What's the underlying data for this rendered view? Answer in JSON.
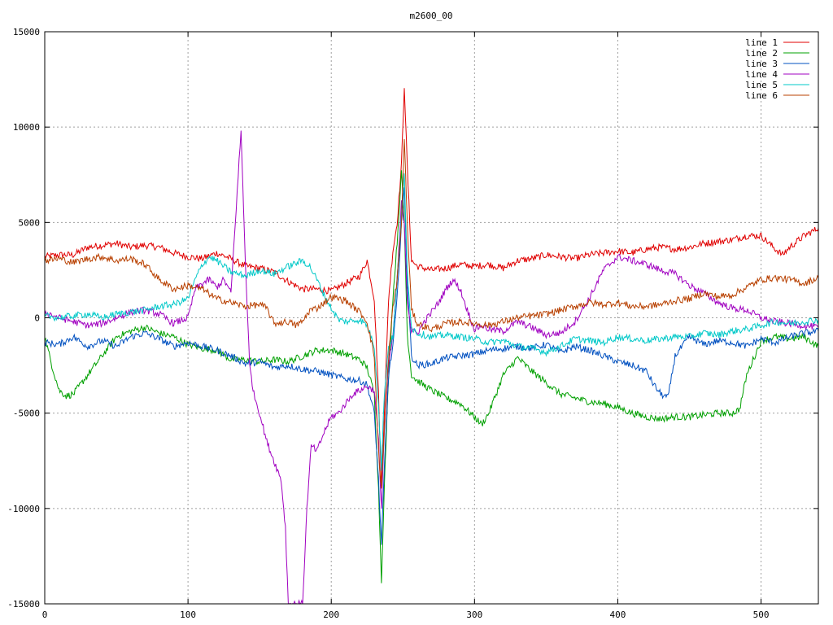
{
  "chart_data": {
    "type": "line",
    "title": "m2600_00",
    "xlabel": "",
    "ylabel": "",
    "xlim": [
      0,
      540
    ],
    "ylim": [
      -15000,
      15000
    ],
    "x_ticks": [
      0,
      100,
      200,
      300,
      400,
      500
    ],
    "y_ticks": [
      -15000,
      -10000,
      -5000,
      0,
      5000,
      10000,
      15000
    ],
    "grid": true,
    "legend_position": "top-right",
    "series": [
      {
        "name": "line 1",
        "color": "#e00000",
        "x": [
          0,
          10,
          20,
          30,
          40,
          50,
          60,
          70,
          80,
          90,
          100,
          110,
          120,
          130,
          140,
          150,
          160,
          170,
          180,
          190,
          200,
          210,
          220,
          225,
          230,
          233,
          235,
          237,
          240,
          243,
          246,
          249,
          251,
          253,
          256,
          260,
          270,
          280,
          290,
          300,
          310,
          320,
          330,
          340,
          350,
          360,
          370,
          380,
          390,
          400,
          410,
          420,
          430,
          440,
          450,
          460,
          470,
          480,
          490,
          500,
          510,
          515,
          520,
          530,
          540
        ],
        "y": [
          3200,
          3300,
          3300,
          3700,
          3800,
          3900,
          3700,
          3800,
          3700,
          3400,
          3200,
          3100,
          3400,
          3100,
          2700,
          2600,
          2400,
          1900,
          1500,
          1500,
          1400,
          1800,
          2200,
          3000,
          1000,
          -4000,
          -9000,
          -5000,
          1000,
          3500,
          5000,
          8000,
          12200,
          8000,
          3000,
          2700,
          2500,
          2600,
          2800,
          2700,
          2800,
          2600,
          3000,
          3100,
          3300,
          3200,
          3100,
          3300,
          3400,
          3500,
          3400,
          3600,
          3700,
          3600,
          3700,
          3900,
          4000,
          4100,
          4300,
          4300,
          3600,
          3300,
          3700,
          4300,
          4700
        ]
      },
      {
        "name": "line 2",
        "color": "#00a000",
        "x": [
          0,
          5,
          10,
          15,
          20,
          25,
          30,
          40,
          50,
          60,
          70,
          80,
          90,
          100,
          110,
          120,
          130,
          140,
          150,
          160,
          170,
          180,
          190,
          200,
          210,
          220,
          225,
          230,
          233,
          235,
          237,
          240,
          243,
          246,
          249,
          251,
          253,
          256,
          260,
          270,
          280,
          290,
          300,
          305,
          310,
          320,
          330,
          340,
          350,
          360,
          370,
          380,
          390,
          400,
          410,
          420,
          430,
          440,
          450,
          460,
          470,
          480,
          485,
          490,
          500,
          510,
          520,
          530,
          540
        ],
        "y": [
          -1000,
          -2500,
          -3800,
          -4100,
          -4000,
          -3500,
          -3000,
          -2000,
          -1000,
          -700,
          -500,
          -800,
          -1000,
          -1400,
          -1600,
          -1700,
          -2200,
          -2200,
          -2300,
          -2200,
          -2300,
          -2000,
          -1700,
          -1700,
          -1900,
          -2200,
          -2600,
          -4000,
          -9000,
          -13800,
          -9000,
          -3000,
          1000,
          4000,
          7600,
          5000,
          -800,
          -3000,
          -3300,
          -3800,
          -4200,
          -4500,
          -5200,
          -5600,
          -5000,
          -3000,
          -2100,
          -2800,
          -3400,
          -4000,
          -4200,
          -4400,
          -4500,
          -4700,
          -5000,
          -5200,
          -5300,
          -5200,
          -5200,
          -5100,
          -5000,
          -5000,
          -4800,
          -3000,
          -1200,
          -1000,
          -1100,
          -1000,
          -1500
        ]
      },
      {
        "name": "line 3",
        "color": "#0050c0",
        "x": [
          0,
          10,
          20,
          30,
          40,
          50,
          60,
          70,
          80,
          90,
          100,
          110,
          120,
          130,
          140,
          150,
          160,
          170,
          180,
          190,
          200,
          210,
          220,
          225,
          230,
          233,
          235,
          237,
          240,
          243,
          246,
          249,
          251,
          253,
          256,
          260,
          270,
          280,
          290,
          300,
          310,
          320,
          330,
          340,
          350,
          360,
          370,
          380,
          390,
          400,
          410,
          420,
          425,
          430,
          435,
          440,
          450,
          460,
          470,
          480,
          490,
          500,
          510,
          520,
          530,
          540
        ],
        "y": [
          -1300,
          -1400,
          -1000,
          -1500,
          -1200,
          -1500,
          -1000,
          -800,
          -1100,
          -1500,
          -1300,
          -1500,
          -1700,
          -2000,
          -2400,
          -2300,
          -2600,
          -2500,
          -2700,
          -2800,
          -3000,
          -3200,
          -3300,
          -3500,
          -5000,
          -8500,
          -12000,
          -8000,
          -3000,
          -1500,
          1000,
          5000,
          6800,
          2000,
          -2000,
          -2500,
          -2400,
          -2100,
          -2000,
          -1900,
          -1700,
          -1600,
          -1500,
          -1600,
          -1400,
          -1800,
          -1500,
          -1700,
          -2000,
          -2300,
          -2500,
          -2800,
          -3500,
          -4000,
          -4200,
          -2000,
          -1000,
          -1400,
          -1200,
          -1300,
          -1500,
          -1100,
          -1300,
          -1000,
          -800,
          -700
        ]
      },
      {
        "name": "line 4",
        "color": "#a000c0",
        "x": [
          0,
          10,
          20,
          30,
          40,
          50,
          60,
          70,
          80,
          90,
          100,
          105,
          110,
          115,
          120,
          125,
          130,
          133,
          137,
          140,
          143,
          146,
          150,
          155,
          160,
          165,
          168,
          170,
          175,
          180,
          183,
          186,
          190,
          195,
          200,
          205,
          210,
          215,
          220,
          225,
          230,
          233,
          235,
          237,
          240,
          243,
          246,
          249,
          251,
          253,
          256,
          260,
          265,
          270,
          275,
          280,
          285,
          290,
          295,
          300,
          305,
          310,
          320,
          330,
          340,
          350,
          360,
          370,
          380,
          390,
          400,
          410,
          420,
          430,
          440,
          450,
          460,
          470,
          480,
          490,
          500,
          510,
          520,
          530,
          540
        ],
        "y": [
          300,
          0,
          -200,
          -400,
          -300,
          0,
          300,
          400,
          200,
          -300,
          0,
          1500,
          1800,
          2000,
          1600,
          2000,
          1300,
          5000,
          9800,
          3000,
          -2500,
          -4000,
          -5000,
          -6500,
          -7500,
          -8500,
          -11000,
          -15000,
          -15000,
          -15000,
          -10000,
          -6700,
          -7000,
          -6000,
          -5200,
          -5000,
          -4500,
          -4000,
          -3800,
          -3600,
          -3800,
          -6500,
          -10000,
          -6000,
          -2500,
          -1000,
          2000,
          6000,
          5000,
          1000,
          -700,
          -800,
          -200,
          300,
          800,
          1500,
          2000,
          1500,
          400,
          -600,
          -400,
          -600,
          -700,
          -200,
          -500,
          -900,
          -800,
          -200,
          1000,
          2500,
          3200,
          3000,
          2800,
          2500,
          2300,
          1700,
          1300,
          800,
          500,
          400,
          0,
          -200,
          -300,
          -400,
          -500
        ]
      },
      {
        "name": "line 5",
        "color": "#00c8c8",
        "x": [
          0,
          10,
          20,
          30,
          40,
          50,
          60,
          70,
          80,
          90,
          100,
          105,
          110,
          115,
          120,
          125,
          130,
          140,
          150,
          160,
          170,
          180,
          185,
          190,
          195,
          200,
          205,
          210,
          220,
          225,
          230,
          233,
          235,
          237,
          240,
          243,
          246,
          249,
          251,
          253,
          256,
          260,
          270,
          280,
          290,
          300,
          310,
          320,
          330,
          340,
          350,
          360,
          370,
          380,
          390,
          400,
          410,
          420,
          430,
          440,
          450,
          460,
          470,
          480,
          490,
          500,
          510,
          520,
          530,
          540
        ],
        "y": [
          100,
          0,
          100,
          200,
          0,
          200,
          300,
          400,
          600,
          700,
          1000,
          2000,
          2800,
          3200,
          3000,
          2700,
          2400,
          2200,
          2500,
          2300,
          2700,
          3000,
          2700,
          2000,
          1200,
          500,
          -100,
          -200,
          -100,
          -400,
          -1500,
          -4500,
          -8000,
          -4000,
          -1500,
          -1000,
          2000,
          5500,
          7500,
          2500,
          -500,
          -800,
          -1000,
          -900,
          -1000,
          -1100,
          -1300,
          -1200,
          -1500,
          -1600,
          -1800,
          -1500,
          -1100,
          -1200,
          -1300,
          -1000,
          -1100,
          -1200,
          -1100,
          -1000,
          -1000,
          -800,
          -900,
          -700,
          -600,
          -400,
          -200,
          -300,
          -200,
          -100
        ]
      },
      {
        "name": "line 6",
        "color": "#b84000",
        "x": [
          0,
          10,
          20,
          30,
          40,
          50,
          60,
          70,
          80,
          90,
          100,
          110,
          120,
          130,
          140,
          150,
          155,
          160,
          170,
          175,
          180,
          185,
          190,
          195,
          200,
          210,
          215,
          220,
          225,
          230,
          233,
          235,
          237,
          240,
          243,
          246,
          249,
          251,
          253,
          256,
          260,
          270,
          280,
          290,
          300,
          310,
          320,
          330,
          340,
          350,
          360,
          370,
          380,
          390,
          400,
          410,
          420,
          430,
          440,
          450,
          460,
          470,
          480,
          490,
          500,
          510,
          520,
          530,
          540
        ],
        "y": [
          3000,
          3100,
          2900,
          3100,
          3200,
          3000,
          3100,
          2800,
          2000,
          1500,
          1700,
          1500,
          1000,
          800,
          600,
          700,
          500,
          -300,
          -200,
          -400,
          -200,
          400,
          500,
          800,
          1100,
          900,
          600,
          300,
          -200,
          -2000,
          -7000,
          -9000,
          -6000,
          -2000,
          500,
          2000,
          5000,
          9500,
          5000,
          400,
          -300,
          -600,
          -300,
          -200,
          -300,
          -400,
          -200,
          0,
          100,
          200,
          400,
          600,
          800,
          700,
          800,
          600,
          600,
          700,
          900,
          1000,
          1300,
          1100,
          1200,
          1600,
          2000,
          2100,
          2000,
          1800,
          2100
        ]
      }
    ]
  }
}
